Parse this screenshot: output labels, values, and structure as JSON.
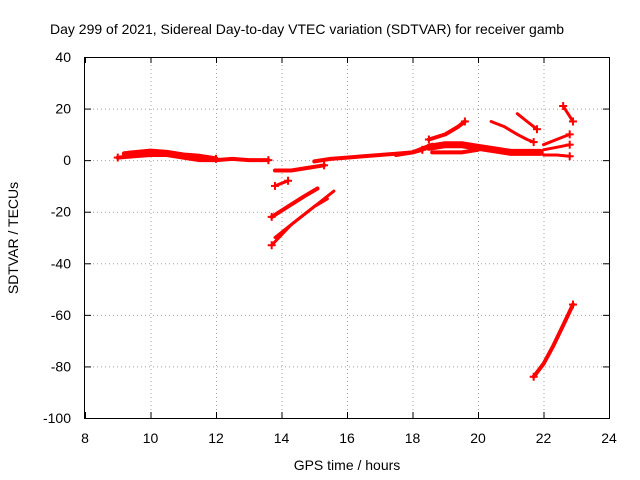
{
  "chart_data": {
    "type": "scatter",
    "title": "Day 299 of 2021, Sidereal Day-to-day VTEC variation (SDTVAR) for receiver gamb",
    "xlabel": "GPS time / hours",
    "ylabel": "SDTVAR / TECUs",
    "xlim": [
      8,
      24
    ],
    "ylim": [
      -100,
      40
    ],
    "xticks": [
      8,
      10,
      12,
      14,
      16,
      18,
      20,
      22,
      24
    ],
    "yticks": [
      -100,
      -80,
      -60,
      -40,
      -20,
      0,
      20,
      40
    ],
    "xtick_labels": [
      "8",
      "10",
      "12",
      "14",
      "16",
      "18",
      "20",
      "22",
      "24"
    ],
    "ytick_labels": [
      "-100",
      "-80",
      "-60",
      "-40",
      "-20",
      "0",
      "20",
      "40"
    ],
    "grid": true,
    "color": "#ff0000",
    "series": [
      {
        "name": "arc-1",
        "width": 4,
        "points": [
          [
            9.0,
            1
          ],
          [
            9.5,
            1.5
          ],
          [
            10.0,
            2
          ],
          [
            10.5,
            2
          ],
          [
            11.0,
            1
          ],
          [
            11.5,
            0
          ],
          [
            12.0,
            0
          ],
          [
            12.5,
            0.5
          ],
          [
            13.0,
            0
          ],
          [
            13.6,
            0
          ]
        ]
      },
      {
        "name": "arc-2",
        "width": 5,
        "points": [
          [
            9.2,
            2.5
          ],
          [
            9.6,
            3
          ],
          [
            10.0,
            3.5
          ],
          [
            10.5,
            3
          ],
          [
            11.0,
            2
          ],
          [
            11.5,
            1.5
          ],
          [
            12.0,
            0.5
          ]
        ]
      },
      {
        "name": "arc-3",
        "width": 4,
        "points": [
          [
            13.8,
            -4
          ],
          [
            14.3,
            -4
          ],
          [
            14.8,
            -3
          ],
          [
            15.3,
            -2
          ]
        ]
      },
      {
        "name": "arc-4",
        "width": 4,
        "points": [
          [
            15.0,
            -0.5
          ],
          [
            15.5,
            0.5
          ],
          [
            16.0,
            1
          ],
          [
            16.5,
            1.5
          ],
          [
            17.0,
            2
          ],
          [
            17.5,
            2.5
          ],
          [
            18.0,
            3
          ],
          [
            18.3,
            4
          ]
        ]
      },
      {
        "name": "arc-5",
        "width": 4,
        "points": [
          [
            17.5,
            2
          ],
          [
            18.0,
            3
          ],
          [
            18.4,
            5
          ],
          [
            18.6,
            6
          ]
        ]
      },
      {
        "name": "arc-6",
        "width": 3,
        "points": [
          [
            13.8,
            -10
          ],
          [
            14.0,
            -9
          ],
          [
            14.2,
            -8
          ]
        ]
      },
      {
        "name": "arc-7",
        "width": 4,
        "points": [
          [
            13.7,
            -22
          ],
          [
            14.2,
            -18
          ],
          [
            14.7,
            -14
          ],
          [
            15.1,
            -11
          ]
        ]
      },
      {
        "name": "arc-8",
        "width": 3,
        "points": [
          [
            13.7,
            -33
          ],
          [
            14.0,
            -29
          ],
          [
            14.3,
            -25
          ],
          [
            14.8,
            -20
          ],
          [
            15.2,
            -16
          ],
          [
            15.6,
            -12
          ]
        ]
      },
      {
        "name": "arc-9",
        "width": 3,
        "points": [
          [
            13.8,
            -30
          ],
          [
            14.2,
            -26
          ],
          [
            14.6,
            -22
          ],
          [
            15.0,
            -18
          ],
          [
            15.4,
            -15
          ]
        ]
      },
      {
        "name": "arc-10",
        "width": 4,
        "points": [
          [
            18.5,
            8
          ],
          [
            19.0,
            10
          ],
          [
            19.4,
            13
          ],
          [
            19.6,
            15
          ]
        ]
      },
      {
        "name": "arc-11",
        "width": 7,
        "points": [
          [
            18.5,
            5
          ],
          [
            19.0,
            6
          ],
          [
            19.5,
            6
          ],
          [
            20.0,
            5
          ],
          [
            20.5,
            4
          ],
          [
            21.0,
            3
          ],
          [
            21.5,
            3
          ],
          [
            21.9,
            3
          ]
        ]
      },
      {
        "name": "arc-12",
        "width": 4,
        "points": [
          [
            18.6,
            3
          ],
          [
            19.0,
            3
          ],
          [
            19.5,
            3
          ],
          [
            20.0,
            4
          ]
        ]
      },
      {
        "name": "arc-13",
        "width": 3,
        "points": [
          [
            20.4,
            15
          ],
          [
            20.8,
            13
          ],
          [
            21.2,
            10
          ],
          [
            21.5,
            8
          ],
          [
            21.7,
            7
          ]
        ]
      },
      {
        "name": "arc-14",
        "width": 3,
        "points": [
          [
            21.2,
            18
          ],
          [
            21.5,
            15
          ],
          [
            21.8,
            12
          ]
        ]
      },
      {
        "name": "arc-15",
        "width": 3,
        "points": [
          [
            22.0,
            4
          ],
          [
            22.4,
            5
          ],
          [
            22.8,
            6
          ]
        ]
      },
      {
        "name": "arc-16",
        "width": 3,
        "points": [
          [
            22.0,
            6
          ],
          [
            22.4,
            8
          ],
          [
            22.8,
            10
          ]
        ]
      },
      {
        "name": "arc-17",
        "width": 3,
        "points": [
          [
            22.0,
            2
          ],
          [
            22.4,
            2
          ],
          [
            22.8,
            1.5
          ]
        ]
      },
      {
        "name": "arc-18",
        "width": 3,
        "points": [
          [
            22.6,
            21
          ],
          [
            22.7,
            19
          ],
          [
            22.8,
            17
          ],
          [
            22.9,
            15
          ]
        ]
      },
      {
        "name": "arc-19",
        "width": 4,
        "points": [
          [
            21.7,
            -84
          ],
          [
            22.0,
            -79
          ],
          [
            22.3,
            -72
          ],
          [
            22.6,
            -64
          ],
          [
            22.9,
            -56
          ]
        ]
      }
    ],
    "markers": [
      [
        21.7,
        -84
      ],
      [
        22.9,
        -56
      ],
      [
        22.6,
        21
      ],
      [
        22.9,
        15
      ],
      [
        13.7,
        -33
      ],
      [
        13.7,
        -22
      ],
      [
        14.2,
        -8
      ],
      [
        13.8,
        -10
      ],
      [
        21.8,
        12
      ],
      [
        21.7,
        7
      ],
      [
        19.6,
        15
      ],
      [
        18.5,
        8
      ],
      [
        22.8,
        6
      ],
      [
        22.8,
        10
      ],
      [
        22.8,
        1.5
      ],
      [
        13.6,
        0
      ],
      [
        9.0,
        1
      ],
      [
        15.3,
        -2
      ],
      [
        18.3,
        4
      ],
      [
        12.0,
        0.5
      ]
    ]
  }
}
